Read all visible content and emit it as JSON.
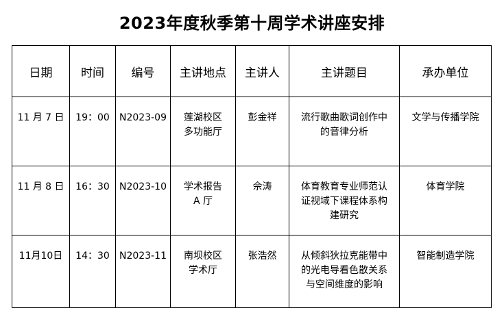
{
  "title": "2023年度秋季第十周学术讲座安排",
  "headers": [
    "日期",
    "时间",
    "编号",
    "主讲地点",
    "主讲人",
    "主讲题目",
    "承办单位"
  ],
  "rows": [
    {
      "date": "11 月 7 日",
      "time": "19：00",
      "code": "N2023-09",
      "venue": [
        "莲湖校区",
        "多功能厅"
      ],
      "speaker": "彭金祥",
      "topic": [
        "流行歌曲歌词创作中",
        "的音律分析"
      ],
      "organizer": "文学与传播学院"
    },
    {
      "date": "11 月 8 日",
      "time": "16：30",
      "code": "N2023-10",
      "venue": [
        "学术报告",
        "A 厅"
      ],
      "speaker": "佘涛",
      "topic": [
        "体育教育专业师范认",
        "证视域下课程体系构",
        "建研究"
      ],
      "organizer": "体育学院"
    },
    {
      "date": "11月10日",
      "time": "14：30",
      "code": "N2023-11",
      "venue": [
        "南坝校区",
        "学术厅"
      ],
      "speaker": "张浩然",
      "topic": [
        "从倾斜狄拉克能带中",
        "的光电导看色散关系",
        "与空间维度的影响"
      ],
      "organizer": "智能制造学院"
    }
  ]
}
